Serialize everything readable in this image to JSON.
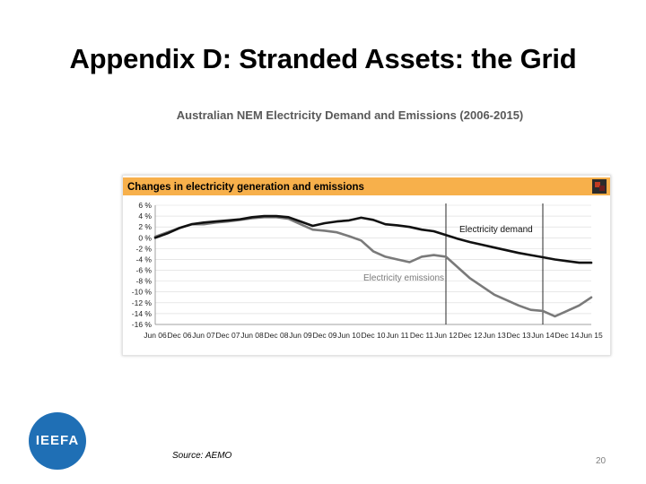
{
  "slide": {
    "title": "Appendix D: Stranded Assets: the Grid",
    "subtitle": "Australian NEM Electricity Demand and Emissions (2006-2015)",
    "source": "Source: AEMO",
    "page_number": "20",
    "logo_text": "IEEFA"
  },
  "colors": {
    "header_bg": "#f7b04b",
    "demand": "#111111",
    "emissions": "#7a7a7a",
    "logo": "#1f6fb5"
  },
  "chart_data": {
    "type": "line",
    "title": "Changes in electricity generation and emissions",
    "categories": [
      "Jun 06",
      "Dec 06",
      "Jun 07",
      "Dec 07",
      "Jun 08",
      "Dec 08",
      "Jun 09",
      "Dec 09",
      "Jun 10",
      "Dec 10",
      "Jun 11",
      "Dec 11",
      "Jun 12",
      "Dec 12",
      "Jun 13",
      "Dec 13",
      "Jun 14",
      "Dec 14",
      "Jun 15"
    ],
    "yticks": [
      "6 %",
      "4 %",
      "2 %",
      "0 %",
      "-2 %",
      "-4 %",
      "-6 %",
      "-8 %",
      "-10 %",
      "-12 %",
      "-14 %",
      "-16 %"
    ],
    "ylim": [
      -16,
      6
    ],
    "grid": true,
    "vlines_at": [
      12,
      16
    ],
    "series": [
      {
        "name": "Electricity demand",
        "x": [
          0,
          0.5,
          1,
          1.5,
          2,
          2.5,
          3,
          3.5,
          4,
          4.5,
          5,
          5.5,
          6,
          6.5,
          7,
          7.5,
          8,
          8.5,
          9,
          9.5,
          10,
          10.5,
          11,
          11.5,
          12,
          12.5,
          13,
          13.5,
          14,
          14.5,
          15,
          15.5,
          16,
          16.5,
          17,
          17.5,
          18
        ],
        "values": [
          0,
          0.8,
          1.8,
          2.5,
          2.8,
          3,
          3.2,
          3.4,
          3.8,
          4,
          4,
          3.8,
          3,
          2.2,
          2.7,
          3,
          3.2,
          3.7,
          3.3,
          2.5,
          2.3,
          2,
          1.5,
          1.2,
          0.5,
          -0.2,
          -0.8,
          -1.3,
          -1.8,
          -2.3,
          -2.8,
          -3.2,
          -3.6,
          -4,
          -4.3,
          -4.6,
          -4.6
        ]
      },
      {
        "name": "Electricity emissions",
        "x": [
          0,
          0.5,
          1,
          1.5,
          2,
          2.5,
          3,
          3.5,
          4,
          4.5,
          5,
          5.5,
          6,
          6.5,
          7,
          7.5,
          8,
          8.5,
          9,
          9.5,
          10,
          10.5,
          11,
          11.5,
          12,
          12.5,
          13,
          13.5,
          14,
          14.5,
          15,
          15.5,
          16,
          16.5,
          17,
          17.5,
          18
        ],
        "values": [
          0.2,
          1,
          1.8,
          2.5,
          2.5,
          2.8,
          3,
          3.3,
          3.6,
          3.8,
          3.8,
          3.5,
          2.5,
          1.5,
          1.3,
          1,
          0.3,
          -0.5,
          -2.5,
          -3.5,
          -4,
          -4.5,
          -3.5,
          -3.2,
          -3.5,
          -5.5,
          -7.5,
          -9,
          -10.5,
          -11.5,
          -12.5,
          -13.3,
          -13.5,
          -14.5,
          -13.5,
          -12.5,
          -11
        ]
      }
    ]
  }
}
